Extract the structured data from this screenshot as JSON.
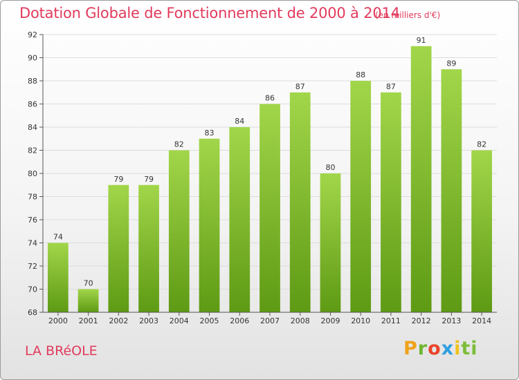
{
  "header": {
    "title": "Dotation Globale de Fonctionnement de 2000 à 2014",
    "unit": "(en milliers d'€)"
  },
  "footer": {
    "commune": "LA BRéOLE",
    "logo_text": "Proxiti",
    "logo_letters": [
      "P",
      "r",
      "o",
      "x",
      "i",
      "ti"
    ]
  },
  "colors": {
    "title": "#e23a5c",
    "bar_top": "#a2d64a",
    "bar_bottom": "#5e9a14",
    "grid": "#dcdcdc"
  },
  "chart_data": {
    "type": "bar",
    "title": "Dotation Globale de Fonctionnement de 2000 à 2014",
    "subtitle": "(en milliers d'€)",
    "xlabel": "",
    "ylabel": "",
    "categories": [
      "2000",
      "2001",
      "2002",
      "2003",
      "2004",
      "2005",
      "2006",
      "2007",
      "2008",
      "2009",
      "2010",
      "2011",
      "2012",
      "2013",
      "2014"
    ],
    "values": [
      74,
      70,
      79,
      79,
      82,
      83,
      84,
      86,
      87,
      80,
      88,
      87,
      91,
      89,
      82
    ],
    "ylim": [
      68,
      92
    ],
    "yticks": [
      68,
      70,
      72,
      74,
      76,
      78,
      80,
      82,
      84,
      86,
      88,
      90,
      92
    ],
    "grid": true,
    "legend": "none"
  }
}
